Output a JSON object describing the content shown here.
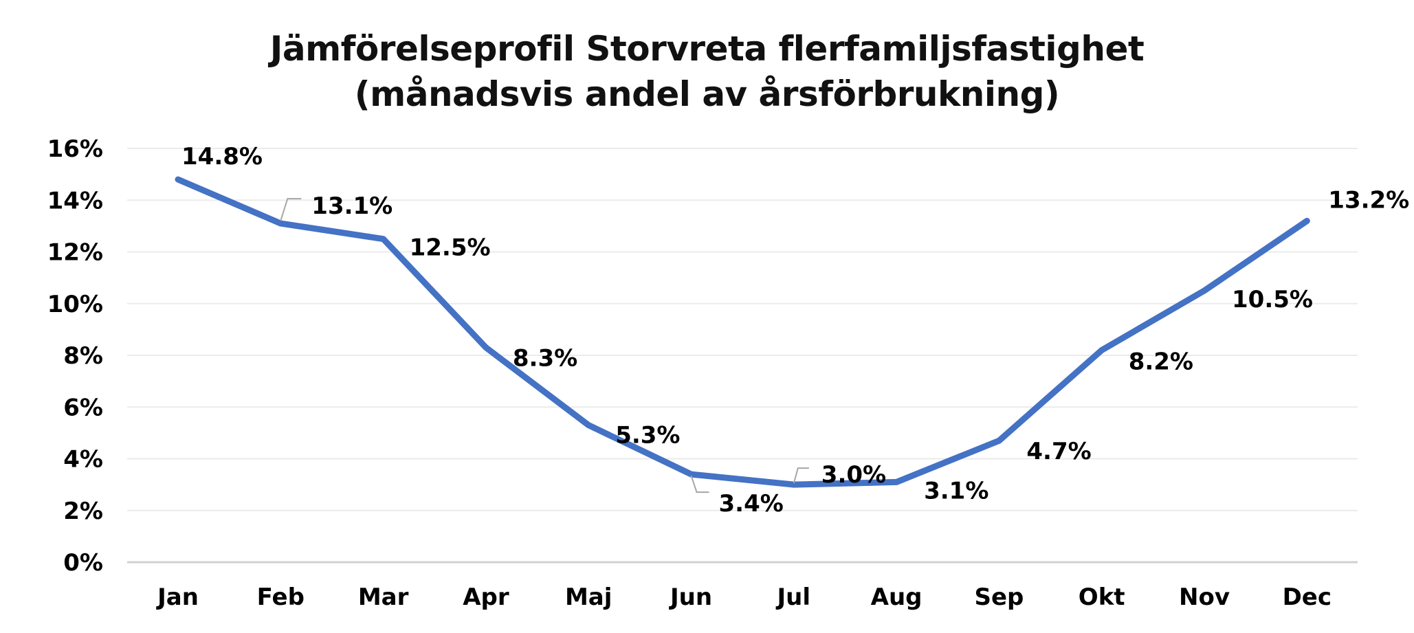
{
  "chart_data": {
    "type": "line",
    "title": "Jämförelseprofil Storvreta flerfamiljsfastighet",
    "subtitle": "(månadsvis andel av årsförbrukning)",
    "categories": [
      "Jan",
      "Feb",
      "Mar",
      "Apr",
      "Maj",
      "Jun",
      "Jul",
      "Aug",
      "Sep",
      "Okt",
      "Nov",
      "Dec"
    ],
    "values": [
      14.8,
      13.1,
      12.5,
      8.3,
      5.3,
      3.4,
      3.0,
      3.1,
      4.7,
      8.2,
      10.5,
      13.2
    ],
    "data_labels": [
      "14.8%",
      "13.1%",
      "12.5%",
      "8.3%",
      "5.3%",
      "3.4%",
      "3.0%",
      "3.1%",
      "4.7%",
      "8.2%",
      "10.5%",
      "13.2%"
    ],
    "y_ticks": [
      "0%",
      "2%",
      "4%",
      "6%",
      "8%",
      "10%",
      "12%",
      "14%",
      "16%"
    ],
    "ylim": [
      0,
      16
    ],
    "grid": true,
    "legend": "none",
    "line_color": "#4472C4",
    "leader_color": "#A6A6A6"
  }
}
